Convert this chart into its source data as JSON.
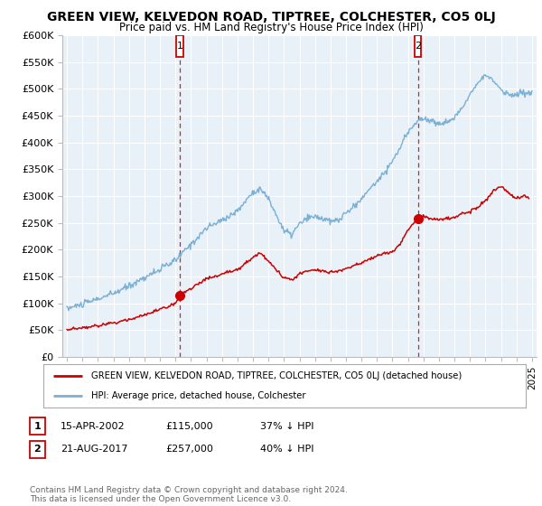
{
  "title": "GREEN VIEW, KELVEDON ROAD, TIPTREE, COLCHESTER, CO5 0LJ",
  "subtitle": "Price paid vs. HM Land Registry's House Price Index (HPI)",
  "ylabel_ticks": [
    "£0",
    "£50K",
    "£100K",
    "£150K",
    "£200K",
    "£250K",
    "£300K",
    "£350K",
    "£400K",
    "£450K",
    "£500K",
    "£550K",
    "£600K"
  ],
  "ylim": [
    0,
    600000
  ],
  "xlim_start": 1994.7,
  "xlim_end": 2025.3,
  "red_line_color": "#cc0000",
  "blue_line_color": "#7ab0d4",
  "vline_color": "#cc0000",
  "marker1_x": 2002.29,
  "marker1_y": 115000,
  "marker2_x": 2017.64,
  "marker2_y": 257000,
  "marker1_label": "1",
  "marker2_label": "2",
  "legend_entry1": "GREEN VIEW, KELVEDON ROAD, TIPTREE, COLCHESTER, CO5 0LJ (detached house)",
  "legend_entry2": "HPI: Average price, detached house, Colchester",
  "table_row1": [
    "1",
    "15-APR-2002",
    "£115,000",
    "37% ↓ HPI"
  ],
  "table_row2": [
    "2",
    "21-AUG-2017",
    "£257,000",
    "40% ↓ HPI"
  ],
  "footer": "Contains HM Land Registry data © Crown copyright and database right 2024.\nThis data is licensed under the Open Government Licence v3.0.",
  "background_color": "#ffffff",
  "plot_bg_color": "#e8f0f8",
  "grid_color": "#ffffff"
}
